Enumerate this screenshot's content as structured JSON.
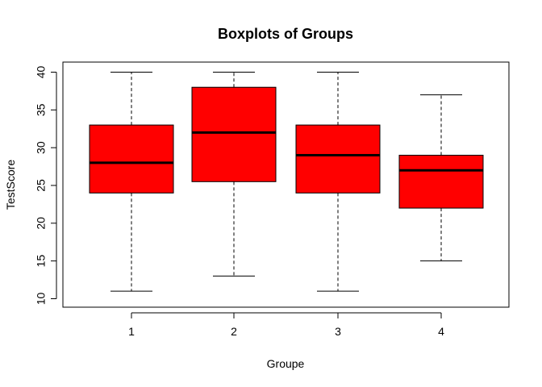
{
  "chart_data": {
    "type": "boxplot",
    "title": "Boxplots of Groups",
    "xlabel": "Groupe",
    "ylabel": "TestScore",
    "categories": [
      "1",
      "2",
      "3",
      "4"
    ],
    "boxes": [
      {
        "min": 11,
        "q1": 24,
        "median": 28,
        "q3": 33,
        "max": 40
      },
      {
        "min": 13,
        "q1": 25.5,
        "median": 32,
        "q3": 38,
        "max": 40
      },
      {
        "min": 11,
        "q1": 24,
        "median": 29,
        "q3": 33,
        "max": 40
      },
      {
        "min": 15,
        "q1": 22,
        "median": 27,
        "q3": 29,
        "max": 37
      }
    ],
    "yticks": [
      10,
      15,
      20,
      25,
      30,
      35,
      40
    ],
    "ylim": [
      10,
      40
    ],
    "box_color": "#ff0000",
    "grid": false,
    "legend": "none"
  }
}
